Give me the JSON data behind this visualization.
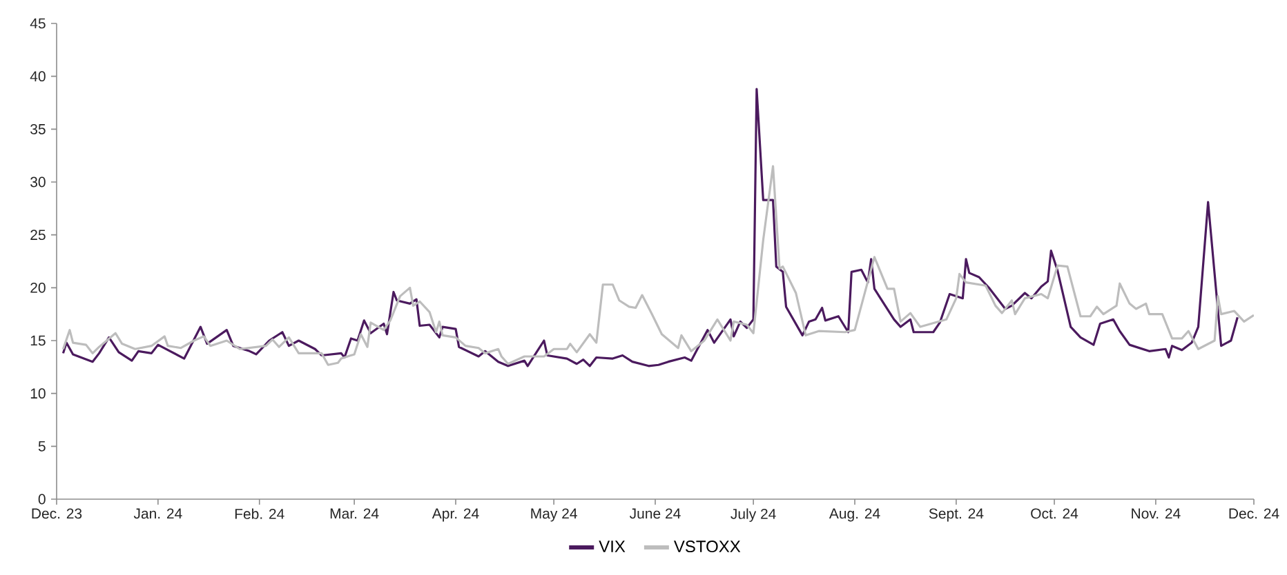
{
  "chart_data": {
    "type": "line",
    "x": [
      "2023-12-03",
      "2023-12-04",
      "2023-12-06",
      "2023-12-12",
      "2023-12-14",
      "2023-12-17",
      "2023-12-20",
      "2023-12-24",
      "2023-12-26",
      "2023-12-30",
      "2024-01-01",
      "2024-01-09",
      "2024-01-14",
      "2024-01-16",
      "2024-01-22",
      "2024-01-24",
      "2024-01-29",
      "2024-01-31",
      "2024-02-04",
      "2024-02-08",
      "2024-02-10",
      "2024-02-13",
      "2024-02-18",
      "2024-02-20",
      "2024-02-26",
      "2024-02-27",
      "2024-02-29",
      "2024-03-02",
      "2024-03-04",
      "2024-03-06",
      "2024-03-10",
      "2024-03-11",
      "2024-03-13",
      "2024-03-14",
      "2024-03-18",
      "2024-03-20",
      "2024-03-21",
      "2024-03-24",
      "2024-03-27",
      "2024-03-28",
      "2024-04-01",
      "2024-04-02",
      "2024-04-08",
      "2024-04-10",
      "2024-04-14",
      "2024-04-17",
      "2024-04-22",
      "2024-04-23",
      "2024-04-28",
      "2024-04-29",
      "2024-05-05",
      "2024-05-08",
      "2024-05-10",
      "2024-05-12",
      "2024-05-14",
      "2024-05-19",
      "2024-05-22",
      "2024-05-25",
      "2024-05-30",
      "2024-06-02",
      "2024-06-05",
      "2024-06-10",
      "2024-06-12",
      "2024-06-17",
      "2024-06-19",
      "2024-06-24",
      "2024-06-25",
      "2024-06-27",
      "2024-06-29",
      "2024-07-01",
      "2024-07-02",
      "2024-07-04",
      "2024-07-07",
      "2024-07-08",
      "2024-07-10",
      "2024-07-11",
      "2024-07-16",
      "2024-07-18",
      "2024-07-20",
      "2024-07-22",
      "2024-07-23",
      "2024-07-27",
      "2024-07-30",
      "2024-07-31",
      "2024-08-03",
      "2024-08-05",
      "2024-08-06",
      "2024-08-07",
      "2024-08-13",
      "2024-08-15",
      "2024-08-18",
      "2024-08-19",
      "2024-08-25",
      "2024-08-27",
      "2024-08-30",
      "2024-09-03",
      "2024-09-04",
      "2024-09-05",
      "2024-09-08",
      "2024-09-11",
      "2024-09-16",
      "2024-09-18",
      "2024-09-22",
      "2024-09-24",
      "2024-09-27",
      "2024-09-29",
      "2024-09-30",
      "2024-10-02",
      "2024-10-06",
      "2024-10-09",
      "2024-10-13",
      "2024-10-15",
      "2024-10-19",
      "2024-10-21",
      "2024-10-24",
      "2024-10-30",
      "2024-11-04",
      "2024-11-05",
      "2024-11-06",
      "2024-11-09",
      "2024-11-12",
      "2024-11-14",
      "2024-11-17",
      "2024-11-21",
      "2024-11-24",
      "2024-11-26"
    ],
    "series": [
      {
        "name": "VIX",
        "color": "#4b1a5e",
        "values": [
          13.8,
          14.8,
          13.7,
          13.0,
          13.8,
          15.3,
          13.9,
          13.1,
          14.0,
          13.8,
          14.6,
          13.3,
          16.3,
          14.7,
          16.0,
          14.5,
          14.0,
          13.7,
          15.0,
          15.8,
          14.5,
          15.0,
          14.2,
          13.6,
          13.8,
          13.4,
          15.2,
          15.0,
          16.9,
          15.7,
          16.6,
          15.6,
          19.6,
          18.8,
          18.5,
          18.9,
          16.4,
          16.5,
          15.3,
          16.3,
          16.1,
          14.4,
          13.5,
          14.0,
          13.0,
          12.6,
          13.1,
          12.6,
          15.0,
          13.6,
          13.3,
          12.8,
          13.2,
          12.6,
          13.4,
          13.3,
          13.6,
          13.0,
          12.6,
          12.7,
          13.0,
          13.4,
          13.1,
          16.0,
          14.8,
          17.0,
          15.4,
          16.8,
          16.2,
          17.0,
          38.8,
          28.3,
          28.3,
          22.0,
          21.5,
          18.2,
          15.5,
          16.8,
          17.0,
          18.1,
          16.9,
          17.3,
          15.8,
          21.5,
          21.7,
          20.5,
          22.7,
          19.9,
          17.0,
          16.3,
          17.0,
          15.8,
          15.8,
          16.7,
          19.4,
          19.0,
          22.7,
          21.4,
          21.0,
          20.0,
          18.0,
          18.3,
          19.5,
          19.0,
          20.1,
          20.6,
          23.5,
          21.6,
          16.3,
          15.3,
          14.6,
          16.6,
          17.0,
          15.9,
          14.6,
          14.0,
          14.2,
          13.4,
          14.5,
          14.1,
          14.8,
          16.3,
          28.1,
          14.5,
          15.0,
          17.2
        ]
      },
      {
        "name": "VSTOXX",
        "color": "#bdbdbd",
        "x": [
          "2023-12-03",
          "2023-12-05",
          "2023-12-06",
          "2023-12-10",
          "2023-12-12",
          "2023-12-14",
          "2023-12-19",
          "2023-12-21",
          "2023-12-25",
          "2023-12-30",
          "2024-01-03",
          "2024-01-04",
          "2024-01-08",
          "2024-01-12",
          "2024-01-15",
          "2024-01-17",
          "2024-01-22",
          "2024-01-26",
          "2024-02-03",
          "2024-02-05",
          "2024-02-07",
          "2024-02-10",
          "2024-02-13",
          "2024-02-20",
          "2024-02-22",
          "2024-02-25",
          "2024-02-26",
          "2024-03-01",
          "2024-03-03",
          "2024-03-05",
          "2024-03-06",
          "2024-03-10",
          "2024-03-12",
          "2024-03-15",
          "2024-03-18",
          "2024-03-19",
          "2024-03-21",
          "2024-03-24",
          "2024-03-26",
          "2024-03-27",
          "2024-03-28",
          "2024-04-01",
          "2024-04-04",
          "2024-04-08",
          "2024-04-10",
          "2024-04-14",
          "2024-04-15",
          "2024-04-17",
          "2024-04-22",
          "2024-04-28",
          "2024-05-01",
          "2024-05-05",
          "2024-05-06",
          "2024-05-08",
          "2024-05-12",
          "2024-05-14",
          "2024-05-16",
          "2024-05-19",
          "2024-05-21",
          "2024-05-24",
          "2024-05-26",
          "2024-05-28",
          "2024-05-31",
          "2024-06-03",
          "2024-06-08",
          "2024-06-09",
          "2024-06-12",
          "2024-06-16",
          "2024-06-20",
          "2024-06-24",
          "2024-06-25",
          "2024-06-29",
          "2024-07-01",
          "2024-07-04",
          "2024-07-07",
          "2024-07-09",
          "2024-07-10",
          "2024-07-14",
          "2024-07-17",
          "2024-07-21",
          "2024-07-29",
          "2024-08-01",
          "2024-08-07",
          "2024-08-11",
          "2024-08-13",
          "2024-08-15",
          "2024-08-18",
          "2024-08-21",
          "2024-08-29",
          "2024-09-01",
          "2024-09-02",
          "2024-09-04",
          "2024-09-10",
          "2024-09-13",
          "2024-09-15",
          "2024-09-18",
          "2024-09-19",
          "2024-09-22",
          "2024-09-27",
          "2024-09-29",
          "2024-10-02",
          "2024-10-05",
          "2024-10-09",
          "2024-10-12",
          "2024-10-14",
          "2024-10-16",
          "2024-10-20",
          "2024-10-21",
          "2024-10-24",
          "2024-10-26",
          "2024-10-29",
          "2024-10-30",
          "2024-11-03",
          "2024-11-06",
          "2024-11-09",
          "2024-11-11",
          "2024-11-14",
          "2024-11-19",
          "2024-11-20",
          "2024-11-21",
          "2024-11-25",
          "2024-11-28",
          "2024-12-01"
        ],
        "values": [
          14.2,
          16.0,
          14.8,
          14.6,
          13.8,
          14.4,
          15.7,
          14.7,
          14.2,
          14.5,
          15.4,
          14.5,
          14.3,
          15.0,
          15.4,
          14.5,
          15.0,
          14.2,
          14.5,
          15.1,
          14.4,
          15.3,
          13.8,
          13.8,
          12.7,
          12.9,
          13.3,
          13.7,
          15.6,
          14.4,
          16.7,
          16.0,
          16.9,
          19.2,
          20.0,
          18.3,
          18.7,
          17.7,
          15.8,
          16.8,
          15.5,
          15.3,
          14.5,
          14.3,
          13.8,
          14.2,
          13.5,
          12.8,
          13.5,
          13.5,
          14.2,
          14.2,
          14.7,
          13.9,
          15.6,
          14.8,
          20.3,
          20.3,
          18.8,
          18.2,
          18.1,
          19.3,
          17.5,
          15.6,
          14.3,
          15.5,
          14.0,
          15.0,
          17.0,
          15.0,
          16.8,
          16.5,
          15.7,
          24.5,
          31.5,
          21.8,
          22.0,
          19.5,
          15.5,
          15.9,
          15.8,
          16.0,
          22.9,
          19.9,
          19.9,
          16.8,
          17.6,
          16.3,
          17.0,
          19.0,
          21.3,
          20.5,
          20.2,
          18.3,
          17.6,
          18.8,
          17.5,
          19.0,
          19.4,
          19.0,
          22.1,
          22.0,
          17.3,
          17.3,
          18.2,
          17.5,
          18.3,
          20.4,
          18.5,
          18.0,
          18.5,
          17.5,
          17.5,
          15.2,
          15.2,
          15.9,
          14.2,
          15.0,
          19.2,
          17.5,
          17.8,
          16.8,
          17.4
        ]
      }
    ],
    "xlim": [
      "2023-12-01",
      "2024-12-01"
    ],
    "xticks": [
      {
        "value": "2023-12-01",
        "label": "Dec. 23"
      },
      {
        "value": "2024-01-01",
        "label": "Jan. 24"
      },
      {
        "value": "2024-02-01",
        "label": "Feb. 24"
      },
      {
        "value": "2024-03-01",
        "label": "Mar. 24"
      },
      {
        "value": "2024-04-01",
        "label": "Apr. 24"
      },
      {
        "value": "2024-05-01",
        "label": "May 24"
      },
      {
        "value": "2024-06-01",
        "label": "June 24"
      },
      {
        "value": "2024-07-01",
        "label": "July 24"
      },
      {
        "value": "2024-08-01",
        "label": "Aug. 24"
      },
      {
        "value": "2024-09-01",
        "label": "Sept. 24"
      },
      {
        "value": "2024-10-01",
        "label": "Oct. 24"
      },
      {
        "value": "2024-11-01",
        "label": "Nov. 24"
      },
      {
        "value": "2024-12-01",
        "label": "Dec. 24"
      }
    ],
    "ylim": [
      0,
      45
    ],
    "yticks": [
      0,
      5,
      10,
      15,
      20,
      25,
      30,
      35,
      40,
      45
    ],
    "grid": false,
    "legend": "bottom",
    "line_style": "solid"
  }
}
